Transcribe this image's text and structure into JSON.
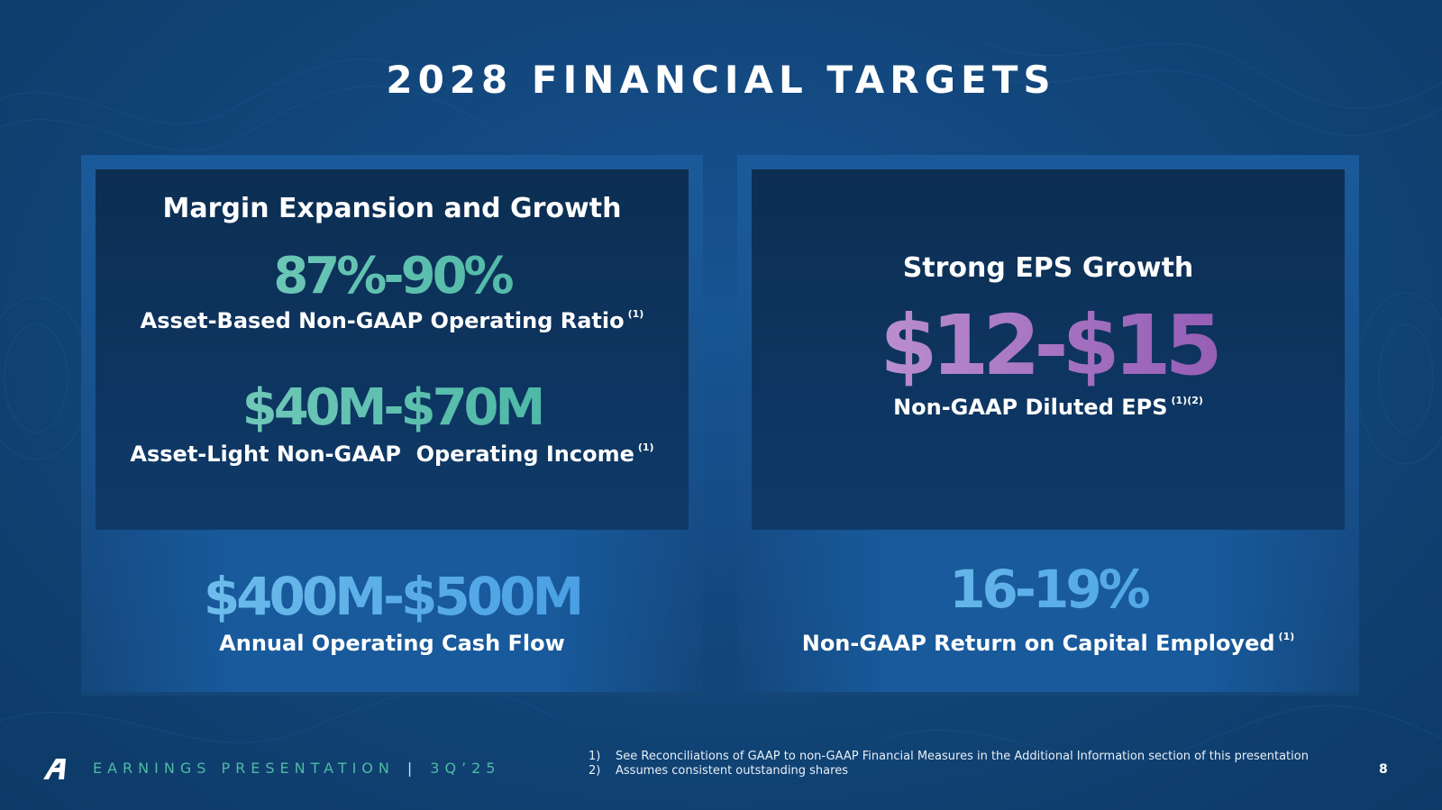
{
  "title": "2028 FINANCIAL TARGETS",
  "left_panel": {
    "heading": "Margin Expansion and Growth",
    "metrics": [
      {
        "value": "87%-90%",
        "label": "Asset-Based Non-GAAP Operating Ratio",
        "footnote": "(1)"
      },
      {
        "value": "$40M-$70M",
        "label": "Asset-Light Non-GAAP  Operating Income",
        "footnote": "(1)"
      }
    ]
  },
  "right_panel": {
    "heading": "Strong EPS Growth",
    "value": "$12-$15",
    "label": "Non-GAAP Diluted EPS",
    "footnote": "(1)(2)"
  },
  "bottom_left": {
    "value": "$400M-$500M",
    "label": "Annual Operating Cash Flow"
  },
  "bottom_right": {
    "value": "16-19%",
    "label": "Non-GAAP Return on Capital Employed",
    "footnote": "(1)"
  },
  "footer": {
    "brand": "EARNINGS PRESENTATION",
    "separator": "|",
    "period": "3Q’25",
    "page": "8",
    "logo_icon": "arcbest-a-logo-icon",
    "notes": [
      {
        "num": "1)",
        "text": "See Reconciliations of GAAP to non-GAAP Financial Measures in the Additional Information section of this presentation"
      },
      {
        "num": "2)",
        "text": "Assumes consistent outstanding shares"
      }
    ]
  },
  "colors": {
    "background": "#114477",
    "teal_accent": "#4fb9a6",
    "purple_accent": "#a36fbf",
    "blue_accent": "#3e97e0"
  }
}
